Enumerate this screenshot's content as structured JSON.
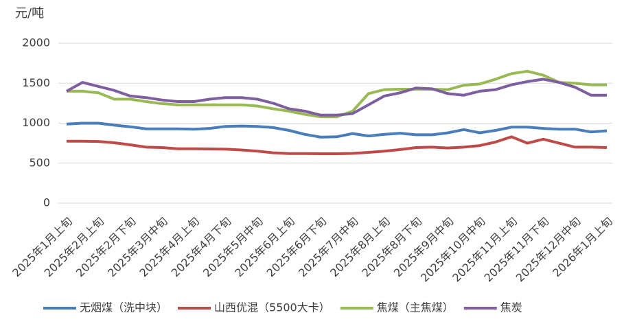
{
  "chart_data": {
    "type": "line",
    "y_label": "元/吨",
    "categories": [
      "2025年1月上旬",
      null,
      "2025年2月上旬",
      null,
      "2025年2月下旬",
      null,
      "2025年3月中旬",
      null,
      "2025年4月上旬",
      null,
      "2025年4月下旬",
      null,
      "2025年5月中旬",
      null,
      "2025年6月上旬",
      null,
      "2025年6月下旬",
      null,
      "2025年7月中旬",
      null,
      "2025年8月上旬",
      null,
      "2025年8月下旬",
      null,
      "2025年9月中旬",
      null,
      "2025年10月中旬",
      null,
      "2025年11月上旬",
      null,
      "2025年11月下旬",
      null,
      "2025年12月中旬",
      null,
      "2026年1月上旬"
    ],
    "series": [
      {
        "name": "无烟煤（洗中块）",
        "color": "#4a7ebb",
        "values": [
          990,
          1000,
          1000,
          975,
          955,
          930,
          930,
          930,
          925,
          935,
          960,
          965,
          960,
          945,
          910,
          860,
          825,
          830,
          870,
          840,
          860,
          875,
          855,
          855,
          880,
          920,
          880,
          910,
          950,
          950,
          935,
          925,
          925,
          890,
          905
        ]
      },
      {
        "name": "山西优混（5500大卡）",
        "color": "#be4b48",
        "values": [
          775,
          775,
          772,
          755,
          730,
          700,
          695,
          680,
          680,
          678,
          675,
          665,
          650,
          630,
          620,
          620,
          618,
          618,
          622,
          635,
          650,
          670,
          695,
          700,
          690,
          700,
          720,
          765,
          830,
          750,
          800,
          750,
          700,
          700,
          695
        ]
      },
      {
        "name": "焦煤（主焦煤）",
        "color": "#98b954",
        "values": [
          1400,
          1400,
          1380,
          1300,
          1300,
          1270,
          1245,
          1230,
          1230,
          1230,
          1230,
          1230,
          1215,
          1180,
          1150,
          1110,
          1080,
          1080,
          1150,
          1370,
          1420,
          1425,
          1425,
          1425,
          1420,
          1475,
          1490,
          1550,
          1620,
          1650,
          1600,
          1510,
          1500,
          1480,
          1480
        ]
      },
      {
        "name": "焦炭",
        "color": "#7d5fa0",
        "values": [
          1400,
          1510,
          1460,
          1410,
          1340,
          1320,
          1290,
          1270,
          1270,
          1300,
          1320,
          1320,
          1300,
          1250,
          1180,
          1150,
          1100,
          1100,
          1120,
          1230,
          1340,
          1380,
          1440,
          1430,
          1370,
          1350,
          1400,
          1420,
          1480,
          1520,
          1550,
          1510,
          1450,
          1350,
          1350
        ]
      }
    ],
    "ylim": [
      0,
      2000
    ],
    "yticks": [
      0,
      500,
      1000,
      1500,
      2000
    ],
    "grid": true,
    "legend": "bottom"
  }
}
